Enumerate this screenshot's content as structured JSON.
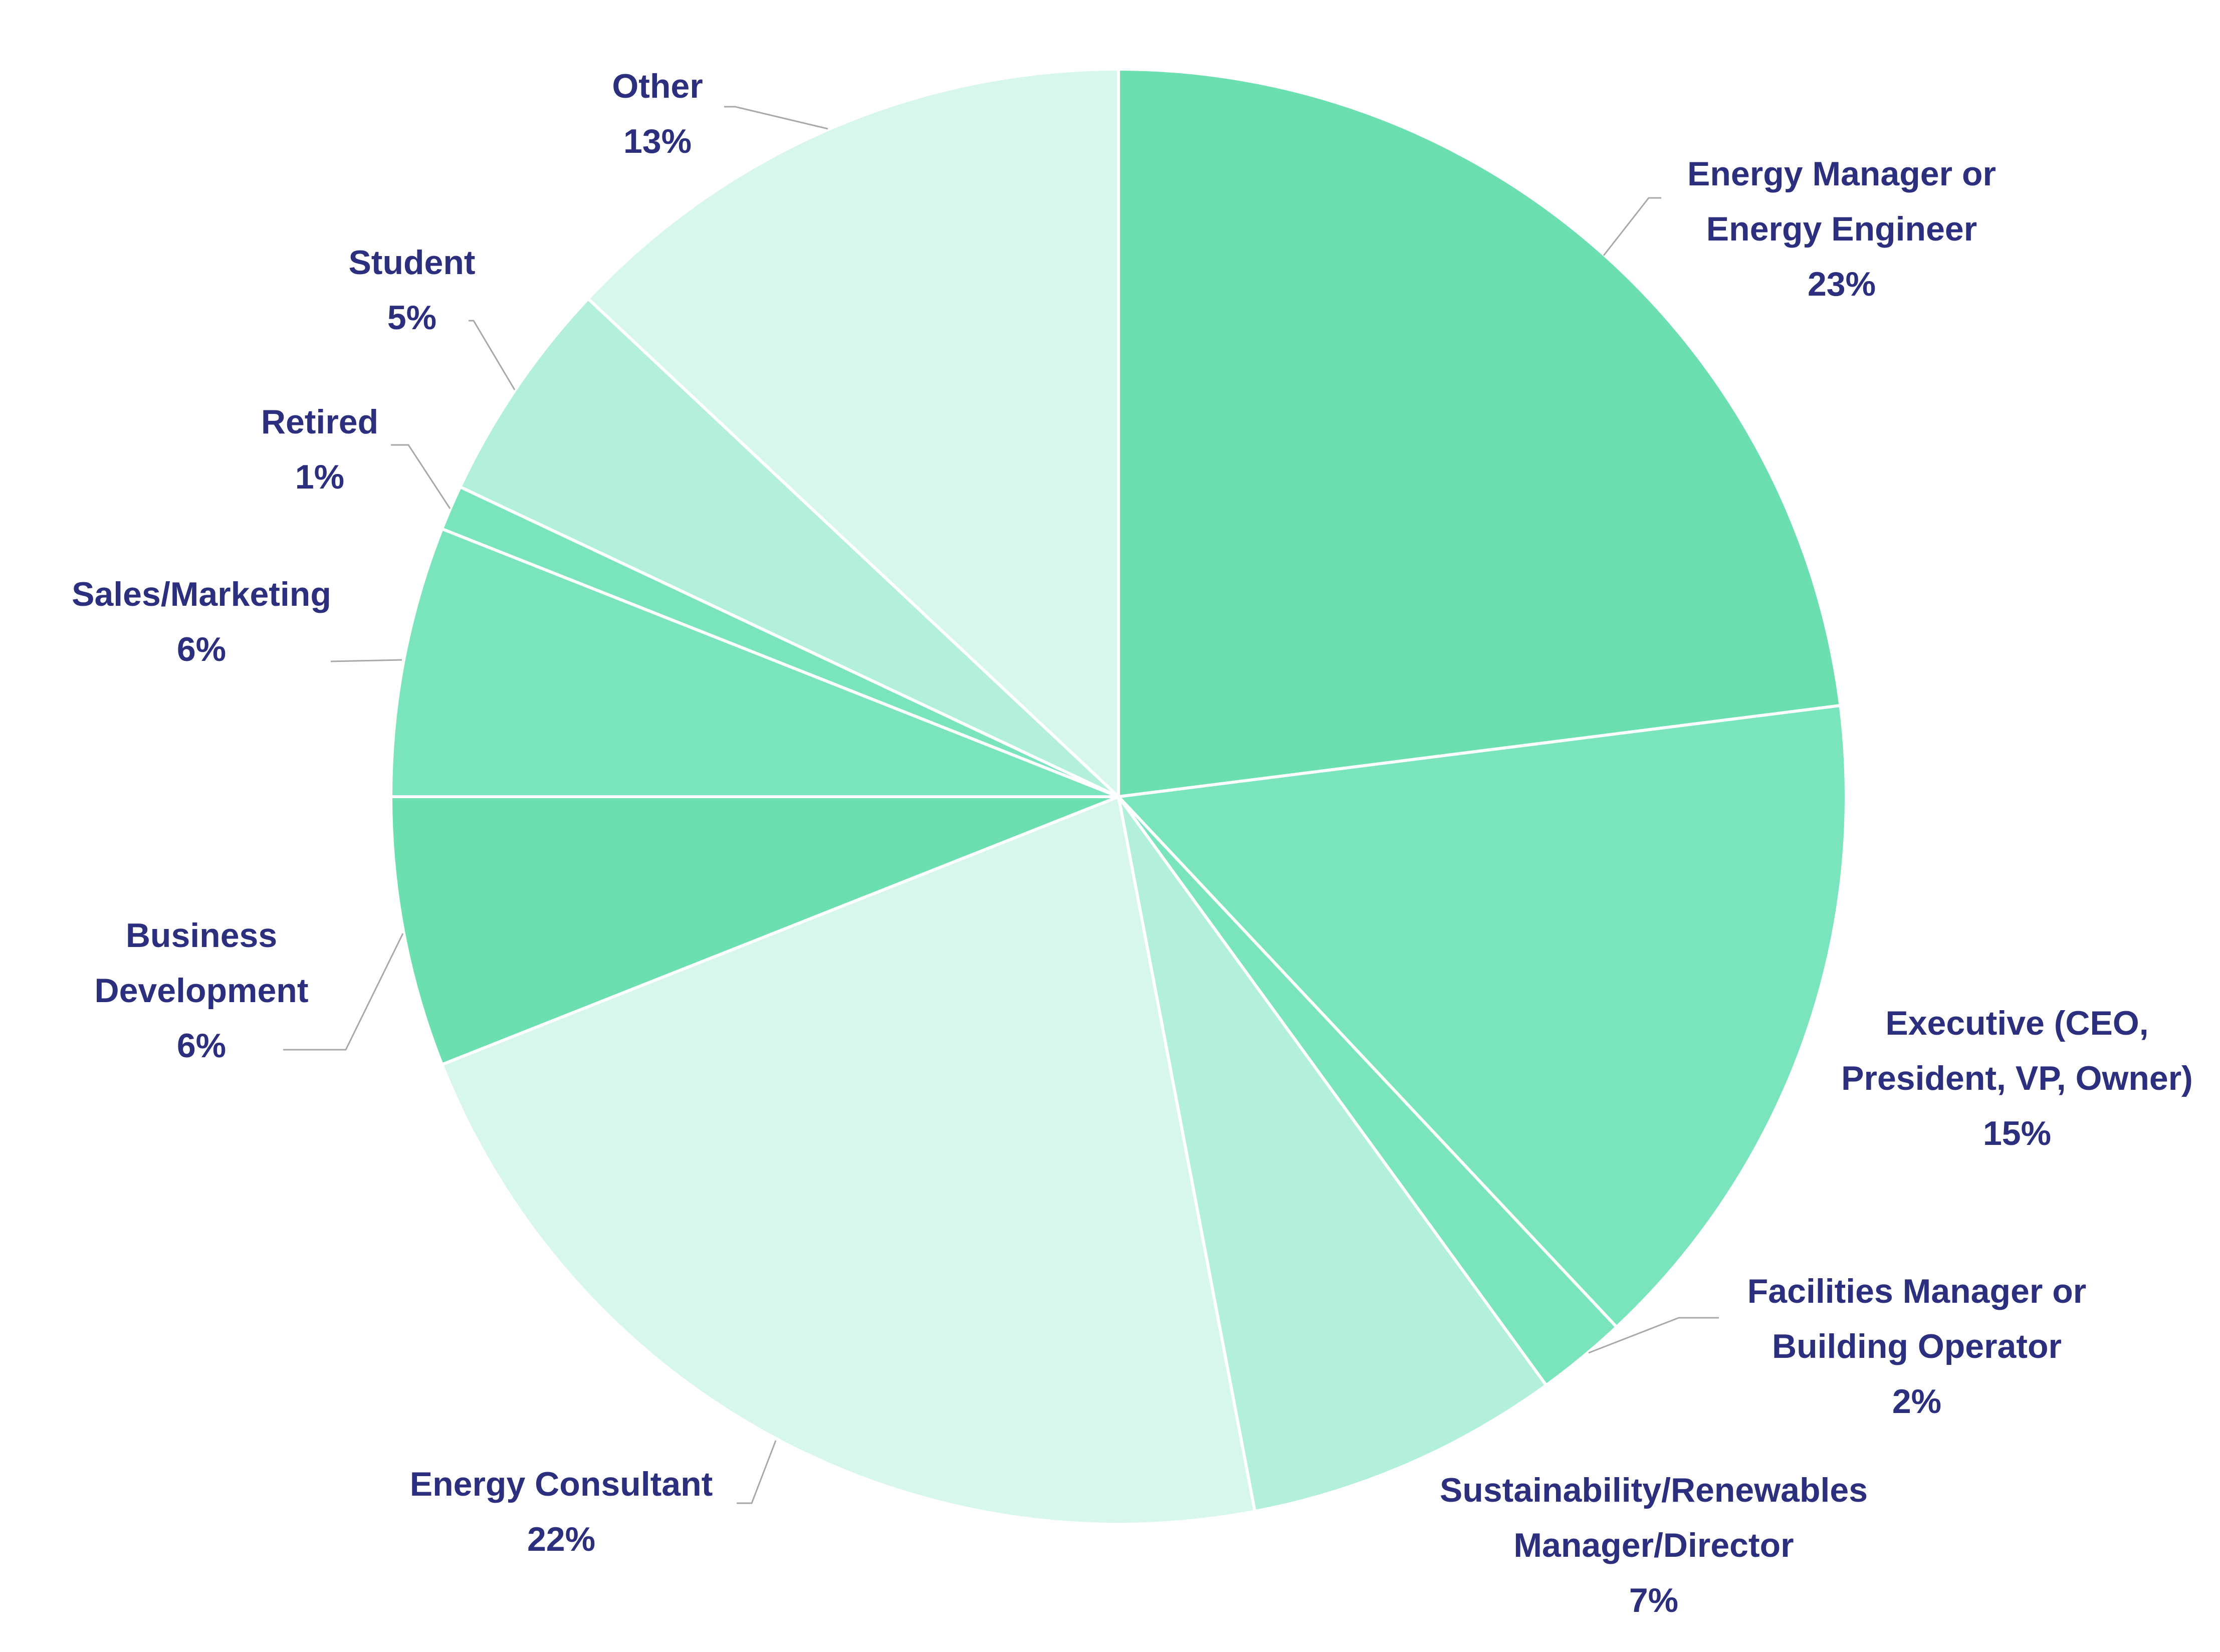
{
  "chart_data": {
    "type": "pie",
    "start": "top, clockwise",
    "slices": [
      {
        "label": "Energy Manager or\nEnergy Engineer",
        "value": 23,
        "value_label": "23%",
        "color": "#6bdfb0"
      },
      {
        "label": "Executive (CEO,\nPresident, VP, Owner)",
        "value": 15,
        "value_label": "15%",
        "color": "#7ae4bd"
      },
      {
        "label": "Facilities Manager or\nBuilding Operator",
        "value": 2,
        "value_label": "2%",
        "color": "#7ae4bd"
      },
      {
        "label": "Sustainability/Renewables\nManager/Director",
        "value": 7,
        "value_label": "7%",
        "color": "#b3f0dc"
      },
      {
        "label": "Energy Consultant",
        "value": 22,
        "value_label": "22%",
        "color": "#d7f6ec"
      },
      {
        "label": "Business\nDevelopment",
        "value": 6,
        "value_label": "6%",
        "color": "#6bdfb0"
      },
      {
        "label": "Sales/Marketing",
        "value": 6,
        "value_label": "6%",
        "color": "#7ae4bd"
      },
      {
        "label": "Retired",
        "value": 1,
        "value_label": "1%",
        "color": "#7ae4bd"
      },
      {
        "label": "Student",
        "value": 5,
        "value_label": "5%",
        "color": "#b3f0dc"
      },
      {
        "label": "Other",
        "value": 13,
        "value_label": "13%",
        "color": "#d7f6ec"
      }
    ]
  }
}
